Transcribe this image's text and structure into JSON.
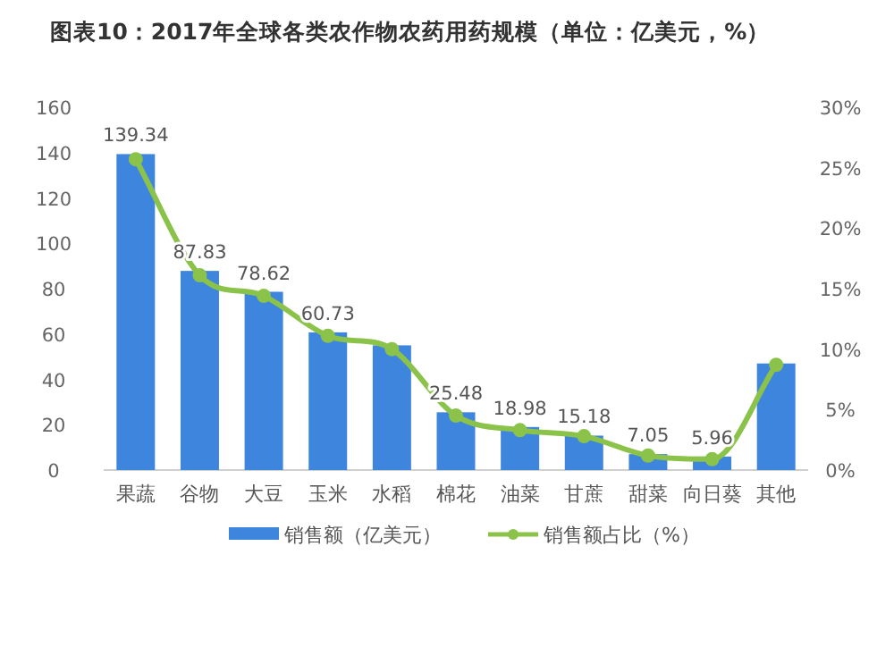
{
  "chart_data": {
    "type": "bar",
    "title": "图表10：2017年全球各类农作物农药用药规模（单位：亿美元，%）",
    "categories": [
      "果蔬",
      "谷物",
      "大豆",
      "玉米",
      "水稻",
      "棉花",
      "油菜",
      "甘蔗",
      "甜菜",
      "向日葵",
      "其他"
    ],
    "series": [
      {
        "name": "销售额（亿美元）",
        "color": "#3e85de",
        "values": [
          139.34,
          87.83,
          78.62,
          60.73,
          55,
          25.48,
          18.98,
          15.18,
          7.05,
          5.96,
          47
        ],
        "value_labels": [
          "139.34",
          "87.83",
          "78.62",
          "60.73",
          null,
          "25.48",
          "18.98",
          "15.18",
          "7.05",
          "5.96",
          null
        ]
      },
      {
        "name": "销售额占比（%）",
        "type": "line",
        "axis": "y2",
        "color": "#8bc34a",
        "marker": "circle",
        "values": [
          25.7,
          16.1,
          14.4,
          11.1,
          10.0,
          4.5,
          3.3,
          2.8,
          1.2,
          0.9,
          8.7
        ]
      }
    ],
    "ylim": [
      0,
      160
    ],
    "yticks": [
      0,
      20,
      40,
      60,
      80,
      100,
      120,
      140,
      160
    ],
    "y2lim": [
      0,
      30
    ],
    "y2ticks": [
      {
        "value": 0,
        "label": "0%"
      },
      {
        "value": 5,
        "label": "5%"
      },
      {
        "value": 10,
        "label": "10%"
      },
      {
        "value": 15,
        "label": "15%"
      },
      {
        "value": 20,
        "label": "20%"
      },
      {
        "value": 25,
        "label": "25%"
      },
      {
        "value": 30,
        "label": "30%"
      }
    ],
    "legend": "bottom"
  }
}
